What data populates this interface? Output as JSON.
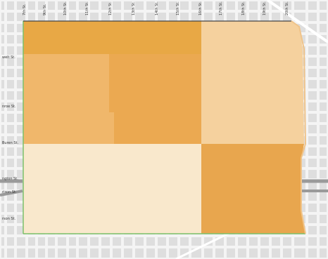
{
  "map": {
    "colors": {
      "background": "#f4f4f4",
      "block": "#dedede",
      "street": "#ffffff",
      "highway": "#9a9a9a",
      "boundary_green": "#7cc06a",
      "boundary_dark": "#444444",
      "outline_orange": "#f0c48a"
    },
    "north_south_streets": [
      {
        "label": "7th St."
      },
      {
        "label": "9th St."
      },
      {
        "label": "10th St."
      },
      {
        "label": "11th St."
      },
      {
        "label": "12th St."
      },
      {
        "label": "13th St."
      },
      {
        "label": "14th St."
      },
      {
        "label": "15th St."
      },
      {
        "label": "16th St."
      },
      {
        "label": "17th St."
      },
      {
        "label": "18th St."
      },
      {
        "label": "19th St."
      },
      {
        "label": "20th St."
      }
    ],
    "east_west_streets": [
      {
        "label": "welt St."
      },
      {
        "label": "nroe St."
      },
      {
        "label": "Buren St."
      },
      {
        "label": "ngton St."
      },
      {
        "label": "rison St."
      },
      {
        "label": "rson St."
      }
    ],
    "regions": [
      {
        "id": "region-north",
        "color": "#e8a845"
      },
      {
        "id": "region-northeast",
        "color": "#f5d19e"
      },
      {
        "id": "region-west-middle",
        "color": "#f0b76b"
      },
      {
        "id": "region-center",
        "color": "#eba951"
      },
      {
        "id": "region-southwest",
        "color": "#f9e8cc"
      },
      {
        "id": "region-southeast",
        "color": "#e8a64e"
      }
    ]
  }
}
